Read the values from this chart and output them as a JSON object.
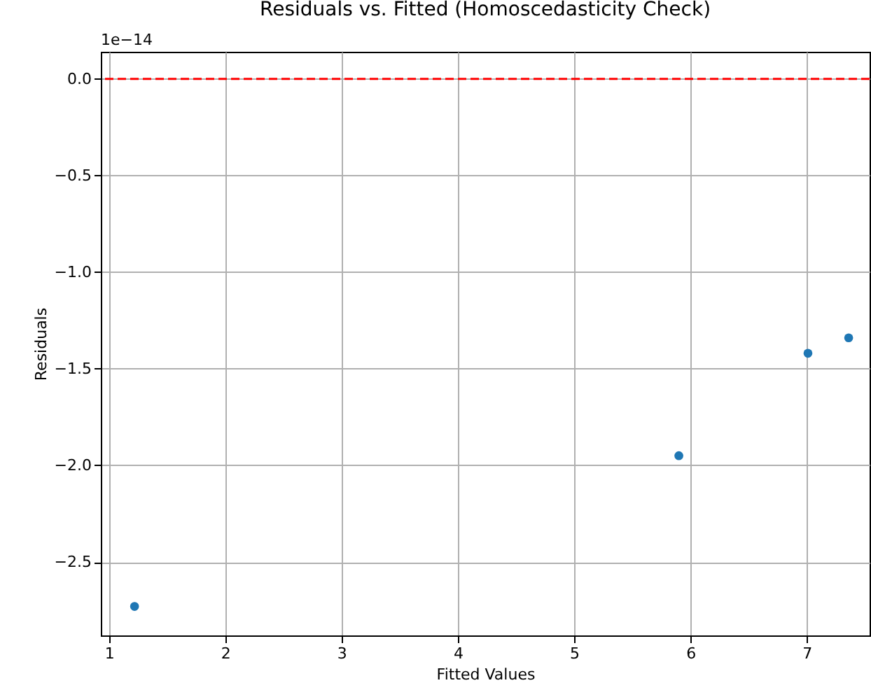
{
  "chart_data": {
    "type": "scatter",
    "title": "Residuals vs. Fitted (Homoscedasticity Check)",
    "xlabel": "Fitted Values",
    "ylabel": "Residuals",
    "annotations": [
      "1e−14"
    ],
    "x": [
      1.22,
      5.9,
      7.01,
      7.36
    ],
    "series": [
      {
        "color": "#1f77b4",
        "values": [
          -2.73,
          -1.95,
          -1.42,
          -1.34
        ]
      }
    ],
    "xlim": [
      0.93,
      7.54
    ],
    "ylim": [
      -2.88,
      0.14
    ],
    "xticks": [
      1,
      2,
      3,
      4,
      5,
      6,
      7
    ],
    "yticks": [
      -2.5,
      {
        "value": -2,
        "label": "−2.0"
      },
      -1.5,
      {
        "value": -1,
        "label": "−1.0"
      },
      -0.5,
      {
        "value": 0,
        "label": "0.0"
      }
    ],
    "ref_lines": [
      {
        "axis": "y",
        "value": 0,
        "color": "#ff0000",
        "line_style": "dashed"
      }
    ],
    "grid": true,
    "marker": "circle"
  }
}
